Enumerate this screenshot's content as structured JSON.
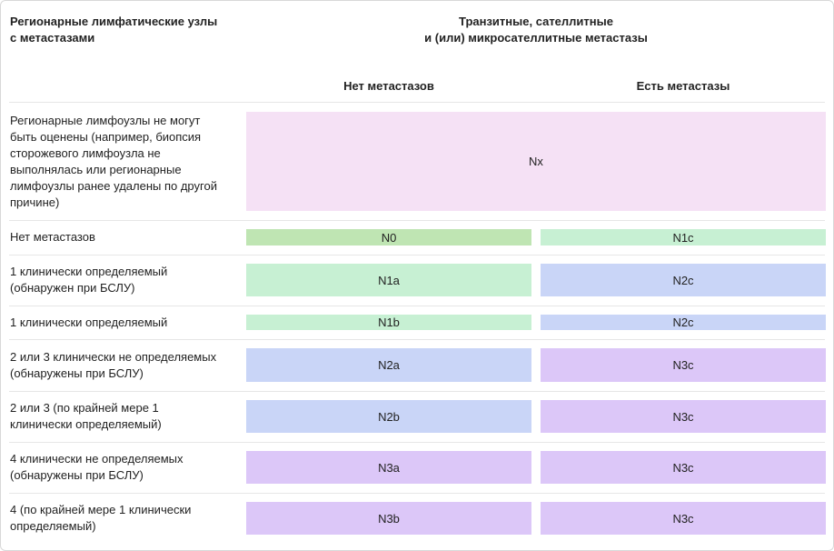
{
  "header": {
    "left": "Регионарные  лимфатические узлы\nс метастазами",
    "center": "Транзитные, сателлитные\nи (или) микросателлитные метастазы",
    "columns": [
      "Нет метастазов",
      "Есть метастазы"
    ]
  },
  "table": {
    "rows": [
      {
        "label": "Регионарные лимфоузлы не могут\nбыть оценены (например, биопсия\nсторожевого лимфоузла не\nвыполнялась или регионарные\nлимфоузлы ранее удалены по другой\nпричине)",
        "cells": [
          {
            "text": "Nx",
            "color": "#f5e1f5",
            "span": 2
          }
        ]
      },
      {
        "label": "Нет метастазов",
        "cells": [
          {
            "text": "N0",
            "color": "#bfe5b3"
          },
          {
            "text": "N1c",
            "color": "#c7f0d3"
          }
        ]
      },
      {
        "label": "1 клинически определяемый\n(обнаружен при БСЛУ)",
        "cells": [
          {
            "text": "N1a",
            "color": "#c7f0d3"
          },
          {
            "text": "N2c",
            "color": "#c9d5f7"
          }
        ]
      },
      {
        "label": "1 клинически определяемый",
        "cells": [
          {
            "text": "N1b",
            "color": "#c7f0d3"
          },
          {
            "text": "N2c",
            "color": "#c9d5f7"
          }
        ]
      },
      {
        "label": "2 или 3 клинически не определяемых\n(обнаружены при БСЛУ)",
        "cells": [
          {
            "text": "N2a",
            "color": "#c9d5f7"
          },
          {
            "text": "N3c",
            "color": "#dcc7f8"
          }
        ]
      },
      {
        "label": "2 или 3 (по крайней мере 1\nклинически определяемый)",
        "cells": [
          {
            "text": "N2b",
            "color": "#c9d5f7"
          },
          {
            "text": "N3c",
            "color": "#dcc7f8"
          }
        ]
      },
      {
        "label": "4 клинически не определяемых\n(обнаружены при БСЛУ)",
        "cells": [
          {
            "text": "N3a",
            "color": "#dcc7f8"
          },
          {
            "text": "N3c",
            "color": "#dcc7f8"
          }
        ]
      },
      {
        "label": "4 (по крайней мере 1 клинически\nопределяемый)",
        "cells": [
          {
            "text": "N3b",
            "color": "#dcc7f8"
          },
          {
            "text": "N3c",
            "color": "#dcc7f8"
          }
        ]
      }
    ]
  }
}
